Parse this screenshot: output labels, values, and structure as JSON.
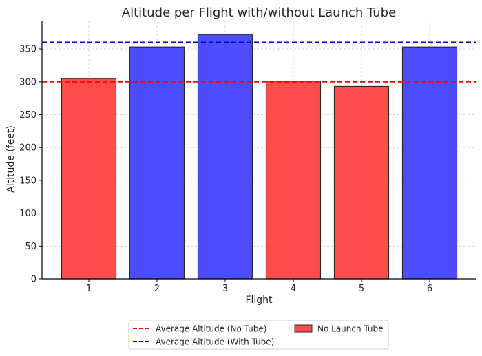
{
  "chart_data": {
    "type": "bar",
    "title": "Altitude per Flight with/without Launch Tube",
    "xlabel": "Flight",
    "ylabel": "Altitude (feet)",
    "categories": [
      "1",
      "2",
      "3",
      "4",
      "5",
      "6"
    ],
    "values": [
      305,
      353,
      372,
      301,
      293,
      353
    ],
    "groups": [
      "No Launch Tube",
      "With Launch Tube",
      "With Launch Tube",
      "No Launch Tube",
      "No Launch Tube",
      "With Launch Tube"
    ],
    "ylim": [
      0,
      392
    ],
    "yticks": [
      0,
      50,
      100,
      150,
      200,
      250,
      300,
      350
    ],
    "grid": true,
    "reference_lines": [
      {
        "name": "Average Altitude (No Tube)",
        "value": 300,
        "color": "#ff0000"
      },
      {
        "name": "Average Altitude (With Tube)",
        "value": 360,
        "color": "#0000cc"
      }
    ],
    "legend": {
      "placement": "bottom-center",
      "entries": [
        {
          "label": "Average Altitude (No Tube)",
          "kind": "line",
          "color": "#ff0000"
        },
        {
          "label": "Average Altitude (With Tube)",
          "kind": "line",
          "color": "#0000cc"
        },
        {
          "label": "No Launch Tube",
          "kind": "patch",
          "color": "#ff4d4d"
        }
      ]
    },
    "colors": {
      "no_tube": "#ff4d4d",
      "with_tube": "#4d4dff"
    }
  }
}
